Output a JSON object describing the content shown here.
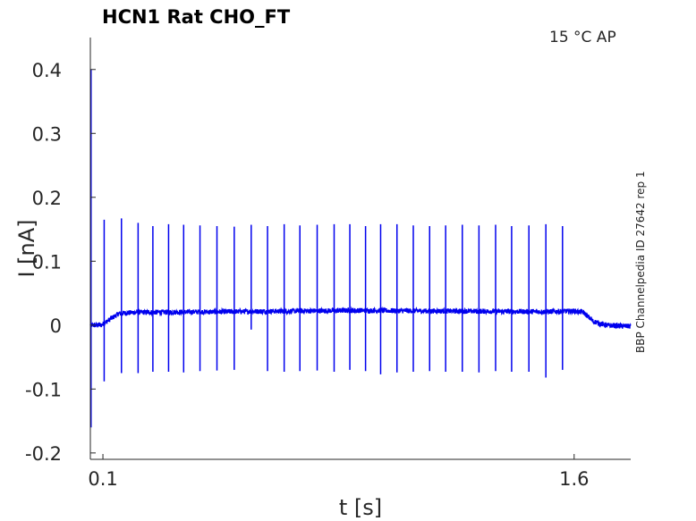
{
  "chart_data": {
    "type": "line",
    "title": "HCN1  Rat  CHO_FT",
    "annotation": "15 °C  AP",
    "side_label": "BBP Channelpedia ID 27642 rep 1",
    "xlabel": "t [s]",
    "ylabel": "I [nA]",
    "xlim": [
      0.06,
      1.78
    ],
    "ylim": [
      -0.21,
      0.45
    ],
    "xticks": [
      0.1,
      1.6
    ],
    "xtick_labels": [
      "0.1",
      "1.6"
    ],
    "yticks": [
      -0.2,
      -0.1,
      0,
      0.1,
      0.2,
      0.3,
      0.4
    ],
    "ytick_labels": [
      "-0.2",
      "-0.1",
      "0",
      "0.1",
      "0.2",
      "0.3",
      "0.4"
    ],
    "grid": false,
    "series": [
      {
        "color": "#0000ee",
        "baseline": [
          [
            0.06,
            0.0
          ],
          [
            0.095,
            0.0
          ],
          [
            0.11,
            0.005
          ],
          [
            0.15,
            0.018
          ],
          [
            0.2,
            0.02
          ],
          [
            0.5,
            0.021
          ],
          [
            0.9,
            0.023
          ],
          [
            1.2,
            0.022
          ],
          [
            1.5,
            0.021
          ],
          [
            1.6,
            0.022
          ],
          [
            1.63,
            0.02
          ],
          [
            1.66,
            0.006
          ],
          [
            1.7,
            0.0
          ],
          [
            1.78,
            -0.002
          ]
        ],
        "onset_transient": {
          "t": 0.062,
          "max": 0.4,
          "min": -0.16
        },
        "spikes": [
          {
            "t": 0.104,
            "max": 0.165,
            "min": -0.088
          },
          {
            "t": 0.159,
            "max": 0.167,
            "min": -0.075
          },
          {
            "t": 0.212,
            "max": 0.16,
            "min": -0.075
          },
          {
            "t": 0.259,
            "max": 0.155,
            "min": -0.073
          },
          {
            "t": 0.309,
            "max": 0.158,
            "min": -0.073
          },
          {
            "t": 0.357,
            "max": 0.157,
            "min": -0.074
          },
          {
            "t": 0.409,
            "max": 0.156,
            "min": -0.072
          },
          {
            "t": 0.463,
            "max": 0.155,
            "min": -0.071
          },
          {
            "t": 0.518,
            "max": 0.154,
            "min": -0.07
          },
          {
            "t": 0.572,
            "max": 0.157,
            "min": -0.007
          },
          {
            "t": 0.624,
            "max": 0.155,
            "min": -0.072
          },
          {
            "t": 0.677,
            "max": 0.158,
            "min": -0.073
          },
          {
            "t": 0.727,
            "max": 0.156,
            "min": -0.072
          },
          {
            "t": 0.782,
            "max": 0.157,
            "min": -0.071
          },
          {
            "t": 0.836,
            "max": 0.158,
            "min": -0.073
          },
          {
            "t": 0.886,
            "max": 0.158,
            "min": -0.07
          },
          {
            "t": 0.936,
            "max": 0.155,
            "min": -0.072
          },
          {
            "t": 0.984,
            "max": 0.158,
            "min": -0.077
          },
          {
            "t": 1.036,
            "max": 0.158,
            "min": -0.074
          },
          {
            "t": 1.088,
            "max": 0.156,
            "min": -0.073
          },
          {
            "t": 1.14,
            "max": 0.155,
            "min": -0.072
          },
          {
            "t": 1.191,
            "max": 0.156,
            "min": -0.073
          },
          {
            "t": 1.244,
            "max": 0.157,
            "min": -0.073
          },
          {
            "t": 1.297,
            "max": 0.156,
            "min": -0.074
          },
          {
            "t": 1.35,
            "max": 0.157,
            "min": -0.072
          },
          {
            "t": 1.401,
            "max": 0.155,
            "min": -0.073
          },
          {
            "t": 1.456,
            "max": 0.156,
            "min": -0.073
          },
          {
            "t": 1.51,
            "max": 0.158,
            "min": -0.082
          },
          {
            "t": 1.563,
            "max": 0.155,
            "min": -0.07
          }
        ],
        "noise_nA": 0.004
      }
    ]
  }
}
